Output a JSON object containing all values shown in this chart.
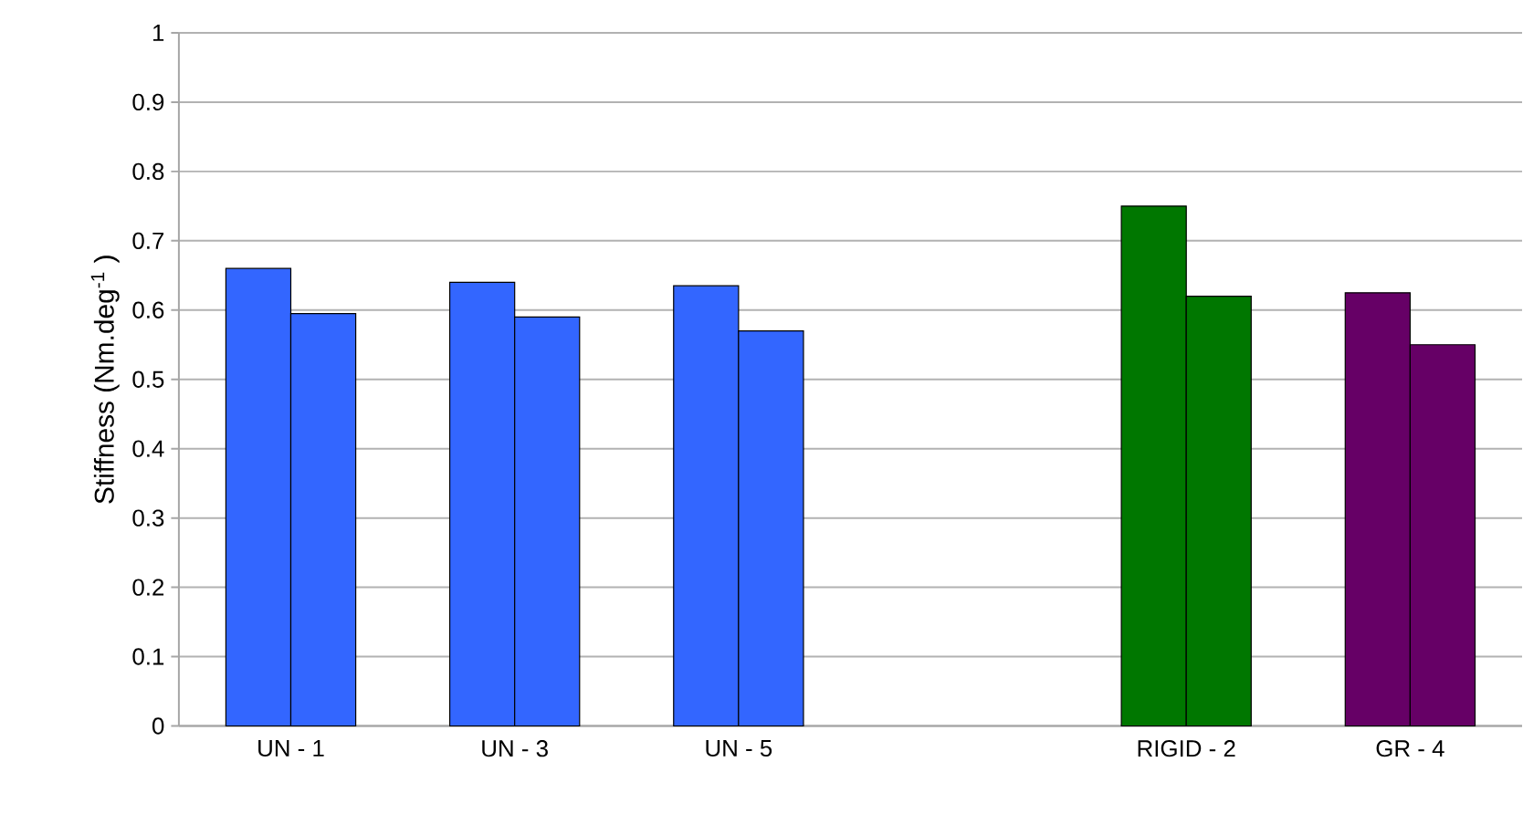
{
  "chart_data": {
    "type": "bar",
    "ylabel": "Stiffness (Nm.deg$^{-1}$ )",
    "categories": [
      "UN - 1",
      "UN - 3",
      "UN - 5",
      null,
      "RIGID - 2",
      "GR - 4"
    ],
    "series": [
      {
        "values": [
          0.66,
          0.64,
          0.635,
          null,
          0.75,
          0.625
        ],
        "colors": [
          "#3366ff",
          "#3366ff",
          "#3366ff",
          "#3366ff",
          "#007700",
          "#660066"
        ]
      },
      {
        "values": [
          0.595,
          0.59,
          0.57,
          null,
          0.62,
          0.55
        ],
        "colors": [
          "#3366ff",
          "#3366ff",
          "#3366ff",
          "#3366ff",
          "#007700",
          "#660066"
        ]
      }
    ],
    "ylim": [
      0,
      1
    ],
    "yticks": [
      0,
      0.1,
      0.2,
      0.3,
      0.4,
      0.5,
      0.6,
      0.7,
      0.8,
      0.9,
      1
    ],
    "grid": "y"
  }
}
